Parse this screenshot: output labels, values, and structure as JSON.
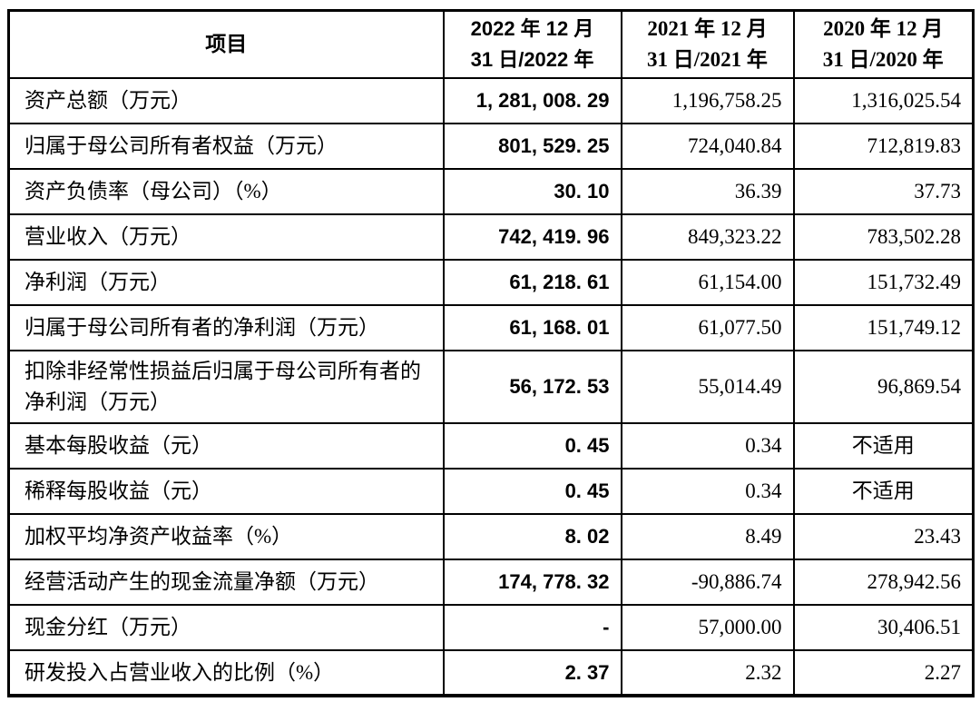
{
  "page": {
    "background": "#ffffff",
    "border_color": "#000000",
    "text_color": "#000000"
  },
  "table": {
    "na_text": "不适用",
    "header": {
      "item": "项目",
      "col_2022": {
        "line1": "2022 年 12 月",
        "line2": "31 日/2022 年"
      },
      "col_2021": {
        "line1": "2021 年 12 月",
        "line2": "31 日/2021 年"
      },
      "col_2020": {
        "line1": "2020 年 12 月",
        "line2": "31 日/2020 年"
      }
    },
    "rows": [
      {
        "label": "资产总额（万元）",
        "v2022": "1, 281, 008. 29",
        "v2021": "1,196,758.25",
        "v2020": "1,316,025.54"
      },
      {
        "label": "归属于母公司所有者权益（万元）",
        "v2022": "801, 529. 25",
        "v2021": "724,040.84",
        "v2020": "712,819.83"
      },
      {
        "label": "资产负债率（母公司）（%）",
        "v2022": "30. 10",
        "v2021": "36.39",
        "v2020": "37.73"
      },
      {
        "label": "营业收入（万元）",
        "v2022": "742, 419. 96",
        "v2021": "849,323.22",
        "v2020": "783,502.28"
      },
      {
        "label": "净利润（万元）",
        "v2022": "61, 218. 61",
        "v2021": "61,154.00",
        "v2020": "151,732.49"
      },
      {
        "label": "归属于母公司所有者的净利润（万元）",
        "v2022": "61, 168. 01",
        "v2021": "61,077.50",
        "v2020": "151,749.12"
      },
      {
        "label": "扣除非经常性损益后归属于母公司所有者的净利润（万元）",
        "v2022": "56, 172. 53",
        "v2021": "55,014.49",
        "v2020": "96,869.54"
      },
      {
        "label": "基本每股收益（元）",
        "v2022": "0. 45",
        "v2021": "0.34",
        "v2020": "不适用"
      },
      {
        "label": "稀释每股收益（元）",
        "v2022": "0. 45",
        "v2021": "0.34",
        "v2020": "不适用"
      },
      {
        "label": "加权平均净资产收益率（%）",
        "v2022": "8. 02",
        "v2021": "8.49",
        "v2020": "23.43"
      },
      {
        "label": "经营活动产生的现金流量净额（万元）",
        "v2022": "174, 778. 32",
        "v2021": "-90,886.74",
        "v2020": "278,942.56"
      },
      {
        "label": "现金分红（万元）",
        "v2022": "-",
        "v2021": "57,000.00",
        "v2020": "30,406.51"
      },
      {
        "label": "研发投入占营业收入的比例（%）",
        "v2022": "2. 37",
        "v2021": "2.32",
        "v2020": "2.27"
      }
    ]
  }
}
